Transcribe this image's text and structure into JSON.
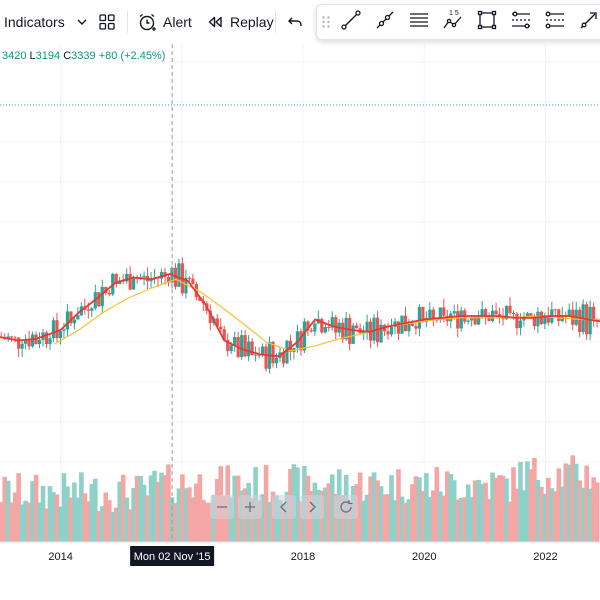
{
  "toolbar": {
    "indicators_label": "Indicators",
    "alert_label": "Alert",
    "replay_label": "Replay"
  },
  "drawing_tools": [
    {
      "icon": "trend-line-icon"
    },
    {
      "icon": "ray-icon"
    },
    {
      "icon": "horizontal-lines-icon"
    },
    {
      "icon": "fib-numbers-icon",
      "label": "1 5"
    },
    {
      "icon": "rectangle-icon"
    },
    {
      "icon": "parallel-channel-icon"
    },
    {
      "icon": "regression-channel-icon"
    },
    {
      "icon": "arrow-line-icon"
    }
  ],
  "legend": {
    "high": "3420",
    "low_prefix": "L",
    "low": "3194",
    "close_prefix": "C",
    "close": "3339",
    "change": "+80 (+2.45%)"
  },
  "crosshair_label": "Mon 02 Nov '15",
  "colors": {
    "up": "#26a69a",
    "down": "#ef5350",
    "ma_fast": "#e53935",
    "ma_slow": "#fbc02d",
    "volume_up": "#8ed1c9",
    "volume_down": "#f4a6a4",
    "dotted_line": "#26a69a"
  },
  "chart_data": {
    "type": "candlestick",
    "x_tick_labels": [
      "2014",
      "2018",
      "2020",
      "2022"
    ],
    "x_ticks_years": [
      2014,
      2018,
      2020,
      2022
    ],
    "x_range": [
      2013.0,
      2022.9
    ],
    "y_range": [
      1700,
      4100
    ],
    "crosshair_year": 2015.84,
    "series_fast_ma": [
      [
        2013.0,
        2540
      ],
      [
        2013.3,
        2520
      ],
      [
        2013.6,
        2530
      ],
      [
        2014.0,
        2580
      ],
      [
        2014.3,
        2680
      ],
      [
        2014.6,
        2760
      ],
      [
        2014.9,
        2850
      ],
      [
        2015.2,
        2880
      ],
      [
        2015.5,
        2870
      ],
      [
        2015.8,
        2900
      ],
      [
        2016.1,
        2860
      ],
      [
        2016.4,
        2720
      ],
      [
        2016.7,
        2520
      ],
      [
        2017.0,
        2470
      ],
      [
        2017.3,
        2440
      ],
      [
        2017.6,
        2430
      ],
      [
        2017.9,
        2510
      ],
      [
        2018.2,
        2640
      ],
      [
        2018.5,
        2600
      ],
      [
        2018.8,
        2580
      ],
      [
        2019.1,
        2570
      ],
      [
        2019.4,
        2600
      ],
      [
        2019.7,
        2620
      ],
      [
        2020.0,
        2640
      ],
      [
        2020.3,
        2650
      ],
      [
        2020.6,
        2660
      ],
      [
        2020.9,
        2660
      ],
      [
        2021.2,
        2660
      ],
      [
        2021.5,
        2650
      ],
      [
        2021.8,
        2650
      ],
      [
        2022.1,
        2660
      ],
      [
        2022.4,
        2660
      ],
      [
        2022.7,
        2640
      ],
      [
        2022.9,
        2630
      ]
    ],
    "series_slow_ma": [
      [
        2013.9,
        2500
      ],
      [
        2014.3,
        2580
      ],
      [
        2014.7,
        2680
      ],
      [
        2015.1,
        2760
      ],
      [
        2015.5,
        2820
      ],
      [
        2015.9,
        2870
      ],
      [
        2016.3,
        2800
      ],
      [
        2016.7,
        2700
      ],
      [
        2017.0,
        2620
      ],
      [
        2017.4,
        2510
      ],
      [
        2017.8,
        2460
      ],
      [
        2018.2,
        2490
      ],
      [
        2018.6,
        2530
      ],
      [
        2019.0,
        2560
      ],
      [
        2019.4,
        2600
      ],
      [
        2019.8,
        2620
      ],
      [
        2020.2,
        2640
      ],
      [
        2020.6,
        2650
      ],
      [
        2021.0,
        2650
      ],
      [
        2021.4,
        2650
      ],
      [
        2021.8,
        2660
      ],
      [
        2022.2,
        2650
      ],
      [
        2022.6,
        2640
      ],
      [
        2022.9,
        2640
      ]
    ]
  }
}
